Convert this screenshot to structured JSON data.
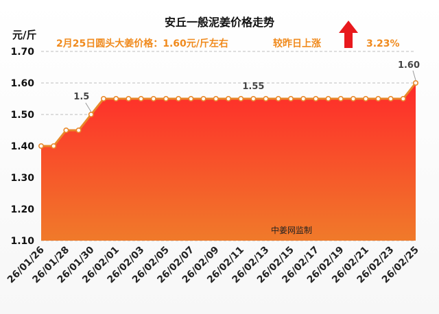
{
  "title": "安丘一般泥姜价格走势",
  "subtitle": "2月25日圆头大姜价格：1.60元/斤左右",
  "change_text": "较昨日上涨",
  "change_pct": "3.23%",
  "unit_label": "元/斤",
  "watermark": "中姜网监制",
  "colors": {
    "line": "#e8882a",
    "fill_top": "#ff2a2a",
    "fill_bottom": "#f07a2a",
    "accent": "#f08a1d",
    "arrow": "#e8191d"
  },
  "chart_data": {
    "type": "area",
    "title": "安丘一般泥姜价格走势",
    "ylabel": "元/斤",
    "xlabel": "",
    "ylim": [
      1.1,
      1.7
    ],
    "yticks": [
      "1.10",
      "1.20",
      "1.30",
      "1.40",
      "1.50",
      "1.60",
      "1.70"
    ],
    "xtick_labels": [
      "26/01/26",
      "26/01/28",
      "26/01/30",
      "26/02/01",
      "26/02/03",
      "26/02/05",
      "26/02/07",
      "26/02/09",
      "26/02/11",
      "26/02/13",
      "26/02/15",
      "26/02/17",
      "26/02/19",
      "26/02/21",
      "26/02/23",
      "26/02/25"
    ],
    "grid": true,
    "x": [
      "26/01/26",
      "26/01/27",
      "26/01/28",
      "26/01/29",
      "26/01/30",
      "26/01/31",
      "26/02/01",
      "26/02/02",
      "26/02/03",
      "26/02/04",
      "26/02/05",
      "26/02/06",
      "26/02/07",
      "26/02/08",
      "26/02/09",
      "26/02/10",
      "26/02/11",
      "26/02/12",
      "26/02/13",
      "26/02/14",
      "26/02/15",
      "26/02/16",
      "26/02/17",
      "26/02/18",
      "26/02/19",
      "26/02/20",
      "26/02/21",
      "26/02/22",
      "26/02/23",
      "26/02/24",
      "26/02/25"
    ],
    "series": [
      {
        "values": [
          1.4,
          1.4,
          1.45,
          1.45,
          1.5,
          1.55,
          1.55,
          1.55,
          1.55,
          1.55,
          1.55,
          1.55,
          1.55,
          1.55,
          1.55,
          1.55,
          1.55,
          1.55,
          1.55,
          1.55,
          1.55,
          1.55,
          1.55,
          1.55,
          1.55,
          1.55,
          1.55,
          1.55,
          1.55,
          1.55,
          1.6
        ]
      }
    ],
    "data_labels": [
      {
        "index": 4,
        "text": "1.5"
      },
      {
        "index": 17,
        "text": "1.55"
      },
      {
        "index": 30,
        "text": "1.60"
      }
    ]
  }
}
